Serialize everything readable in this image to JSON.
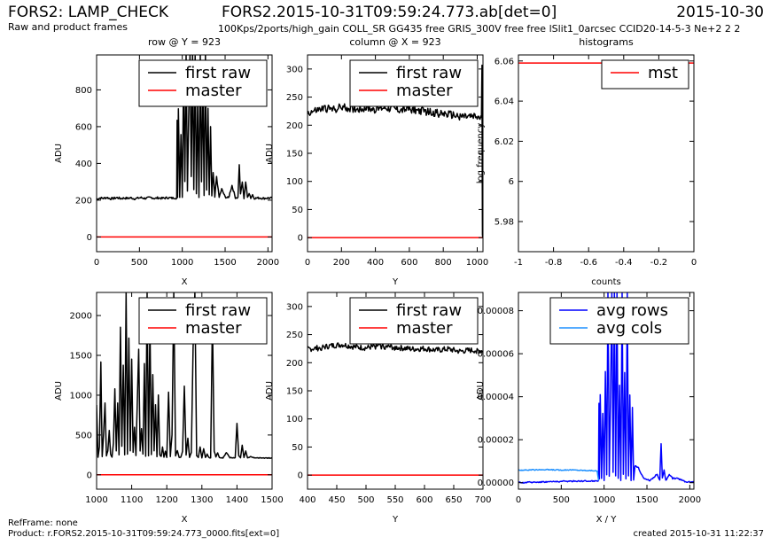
{
  "header": {
    "title": "FORS2: LAMP_CHECK",
    "subtitle": "Raw and product frames",
    "file": "FORS2.2015-10-31T09:59:24.773.ab[det=0]",
    "date": "2015-10-30",
    "config": "100Kps/2ports/high_gain COLL_SR GG435 free GRIS_300V free free lSlit1_0arcsec CCID20-14-5-3 Ne+2 2 2"
  },
  "footer": {
    "refframe": "RefFrame: none",
    "product": "Product: r.FORS2.2015-10-31T09:59:24.773_0000.fits[ext=0]",
    "created": "created 2015-10-31 11:22:37"
  },
  "colors": {
    "raw": "#000000",
    "master": "#ff0000",
    "rows": "#0000ff",
    "cols": "#1e90ff"
  },
  "chart_data": [
    {
      "id": "p1",
      "type": "line",
      "title": "row @ Y = 923",
      "xlabel": "X",
      "ylabel": "ADU",
      "xlim": [
        0,
        2048
      ],
      "ylim": [
        -80,
        990
      ],
      "xticks": [
        0,
        500,
        1000,
        1500,
        2000
      ],
      "yticks": [
        0,
        200,
        400,
        600,
        800
      ],
      "legend": "top-right",
      "series": [
        {
          "name": "first raw",
          "color": "#000000",
          "noise": 6,
          "x": [
            0,
            40,
            80,
            120,
            160,
            200,
            240,
            280,
            320,
            360,
            400,
            440,
            480,
            520,
            560,
            600,
            640,
            680,
            720,
            760,
            800,
            840,
            880,
            900,
            920,
            935,
            940,
            945,
            955,
            970,
            985,
            1000,
            1015,
            1030,
            1045,
            1060,
            1075,
            1090,
            1105,
            1120,
            1135,
            1150,
            1165,
            1180,
            1195,
            1210,
            1225,
            1240,
            1255,
            1270,
            1285,
            1300,
            1315,
            1330,
            1345,
            1360,
            1380,
            1400,
            1430,
            1460,
            1500,
            1540,
            1580,
            1620,
            1650,
            1665,
            1680,
            1700,
            1720,
            1740,
            1760,
            1780,
            1800,
            1820,
            1840,
            1860,
            1900,
            1950,
            2000,
            2048
          ],
          "y": [
            205,
            212,
            210,
            215,
            208,
            210,
            214,
            209,
            212,
            210,
            213,
            208,
            211,
            214,
            210,
            212,
            215,
            209,
            213,
            210,
            212,
            214,
            211,
            212,
            214,
            210,
            630,
            215,
            700,
            220,
            560,
            212,
            880,
            300,
            990,
            250,
            660,
            990,
            330,
            990,
            260,
            990,
            240,
            760,
            220,
            990,
            300,
            860,
            230,
            990,
            250,
            700,
            225,
            600,
            220,
            350,
            215,
            330,
            215,
            260,
            218,
            212,
            280,
            215,
            214,
            390,
            230,
            300,
            212,
            300,
            215,
            240,
            212,
            230,
            212,
            211,
            213,
            210,
            212,
            211
          ]
        },
        {
          "name": "master",
          "color": "#ff0000",
          "x": [
            0,
            2048
          ],
          "y": [
            0,
            0
          ]
        }
      ]
    },
    {
      "id": "p2",
      "type": "line",
      "title": "column @ X = 923",
      "xlabel": "Y",
      "ylabel": "ADU",
      "xlim": [
        0,
        1034
      ],
      "ylim": [
        -25,
        325
      ],
      "xticks": [
        0,
        200,
        400,
        600,
        800,
        1000
      ],
      "yticks": [
        0,
        50,
        100,
        150,
        200,
        250,
        300
      ],
      "legend": "top-right",
      "series": [
        {
          "name": "first raw",
          "color": "#000000",
          "noise": 7,
          "x": [
            0,
            50,
            100,
            150,
            200,
            250,
            300,
            350,
            400,
            450,
            500,
            550,
            600,
            650,
            700,
            750,
            800,
            850,
            900,
            950,
            1000,
            1025,
            1028,
            1031,
            1034
          ],
          "y": [
            222,
            226,
            230,
            228,
            232,
            230,
            229,
            231,
            228,
            232,
            230,
            227,
            229,
            226,
            224,
            222,
            220,
            218,
            216,
            215,
            214,
            212,
            310,
            0,
            0
          ]
        },
        {
          "name": "master",
          "color": "#ff0000",
          "x": [
            0,
            1034
          ],
          "y": [
            0,
            0
          ]
        }
      ]
    },
    {
      "id": "p3",
      "type": "line",
      "title": "histograms",
      "xlabel": "counts",
      "ylabel": "log frequency",
      "xlim": [
        -1.0,
        0.0
      ],
      "ylim": [
        5.965,
        6.063
      ],
      "xticks": [
        -1.0,
        -0.8,
        -0.6,
        -0.4,
        -0.2,
        0.0
      ],
      "yticks": [
        5.98,
        6.0,
        6.02,
        6.04,
        6.06
      ],
      "legend": "top-right",
      "series": [
        {
          "name": "mst",
          "color": "#ff0000",
          "x": [
            -1.0,
            0.0
          ],
          "y": [
            6.059,
            6.059
          ]
        }
      ]
    },
    {
      "id": "p4",
      "type": "line",
      "title": "",
      "xlabel": "X",
      "ylabel": "ADU",
      "xlim": [
        1000,
        1500
      ],
      "ylim": [
        -180,
        2290
      ],
      "xticks": [
        1000,
        1100,
        1200,
        1300,
        1400,
        1500
      ],
      "yticks": [
        0,
        500,
        1000,
        1500,
        2000
      ],
      "legend": "top-right",
      "series": [
        {
          "name": "first raw",
          "color": "#000000",
          "noise": 4,
          "x": [
            1000,
            1004,
            1008,
            1012,
            1016,
            1020,
            1024,
            1028,
            1032,
            1036,
            1040,
            1044,
            1048,
            1052,
            1056,
            1060,
            1064,
            1068,
            1072,
            1076,
            1080,
            1084,
            1088,
            1092,
            1096,
            1100,
            1104,
            1108,
            1112,
            1116,
            1120,
            1124,
            1128,
            1132,
            1136,
            1140,
            1144,
            1148,
            1152,
            1156,
            1160,
            1164,
            1168,
            1172,
            1176,
            1180,
            1184,
            1188,
            1192,
            1196,
            1200,
            1205,
            1210,
            1215,
            1220,
            1225,
            1230,
            1235,
            1240,
            1245,
            1250,
            1255,
            1260,
            1265,
            1270,
            1275,
            1280,
            1285,
            1290,
            1295,
            1300,
            1305,
            1310,
            1315,
            1320,
            1325,
            1330,
            1335,
            1340,
            1345,
            1350,
            1360,
            1370,
            1380,
            1390,
            1395,
            1400,
            1405,
            1410,
            1415,
            1420,
            1425,
            1430,
            1440,
            1450,
            1460,
            1470,
            1480,
            1490,
            1500
          ],
          "y": [
            880,
            220,
            350,
            1420,
            230,
            520,
            900,
            240,
            300,
            560,
            260,
            220,
            400,
            1080,
            300,
            900,
            250,
            1850,
            360,
            1380,
            250,
            2290,
            260,
            1720,
            300,
            1450,
            280,
            600,
            240,
            900,
            1580,
            300,
            580,
            260,
            1400,
            230,
            2290,
            240,
            1920,
            250,
            1260,
            300,
            880,
            230,
            1000,
            250,
            230,
            350,
            220,
            300,
            215,
            1040,
            230,
            500,
            2290,
            240,
            300,
            220,
            220,
            300,
            1110,
            250,
            460,
            220,
            280,
            1600,
            2290,
            240,
            220,
            350,
            215,
            330,
            215,
            260,
            218,
            212,
            1980,
            300,
            220,
            280,
            215,
            212,
            280,
            215,
            214,
            212,
            650,
            240,
            213,
            370,
            215,
            300,
            212,
            230,
            212,
            211,
            213,
            210,
            212,
            211
          ]
        },
        {
          "name": "master",
          "color": "#ff0000",
          "x": [
            1000,
            1500
          ],
          "y": [
            0,
            0
          ]
        }
      ]
    },
    {
      "id": "p5",
      "type": "line",
      "title": "",
      "xlabel": "Y",
      "ylabel": "ADU",
      "xlim": [
        400,
        700
      ],
      "ylim": [
        -25,
        325
      ],
      "xticks": [
        400,
        450,
        500,
        550,
        600,
        650,
        700
      ],
      "yticks": [
        0,
        50,
        100,
        150,
        200,
        250,
        300
      ],
      "legend": "top-right",
      "series": [
        {
          "name": "first raw",
          "color": "#000000",
          "noise": 5,
          "x": [
            400,
            420,
            440,
            460,
            480,
            500,
            520,
            540,
            560,
            580,
            600,
            620,
            640,
            660,
            680,
            700
          ],
          "y": [
            224,
            226,
            230,
            232,
            228,
            226,
            230,
            228,
            226,
            224,
            225,
            222,
            224,
            220,
            222,
            221
          ]
        },
        {
          "name": "master",
          "color": "#ff0000",
          "x": [
            400,
            700
          ],
          "y": [
            0,
            0
          ]
        }
      ]
    },
    {
      "id": "p6",
      "type": "line",
      "title": "",
      "xlabel": "X / Y",
      "ylabel": "ADU",
      "xlim": [
        0,
        2048
      ],
      "ylim": [
        -3e-06,
        8.85e-05
      ],
      "xticks": [
        0,
        500,
        1000,
        1500,
        2000
      ],
      "yticks": [
        0.0,
        2e-05,
        4e-05,
        6e-05,
        8e-05
      ],
      "ytick_labels": [
        "0.00000",
        "0.00002",
        "0.00004",
        "0.00006",
        "0.00008"
      ],
      "legend": "top-right",
      "series": [
        {
          "name": "avg rows",
          "color": "#0000ff",
          "noise": 3e-07,
          "x": [
            0,
            200,
            400,
            600,
            800,
            900,
            920,
            935,
            940,
            945,
            955,
            970,
            985,
            1000,
            1015,
            1030,
            1045,
            1060,
            1075,
            1090,
            1105,
            1120,
            1135,
            1150,
            1165,
            1180,
            1195,
            1210,
            1225,
            1240,
            1255,
            1270,
            1285,
            1300,
            1315,
            1330,
            1345,
            1360,
            1400,
            1460,
            1540,
            1620,
            1650,
            1665,
            1680,
            1700,
            1720,
            1760,
            1800,
            1860,
            1950,
            2048
          ],
          "y": [
            0.0,
            3e-07,
            5e-07,
            7e-07,
            8e-07,
            8e-07,
            9e-07,
            1e-06,
            3.7e-05,
            2e-06,
            4.1e-05,
            2e-06,
            3.2e-05,
            1e-06,
            5.2e-05,
            4e-06,
            8.85e-05,
            3e-06,
            3.9e-05,
            8.85e-05,
            5e-06,
            8.85e-05,
            3e-06,
            8.85e-05,
            2e-06,
            4.5e-05,
            1e-06,
            8.85e-05,
            4e-06,
            5.1e-05,
            2e-06,
            8.85e-05,
            3e-06,
            4.1e-05,
            1e-06,
            3.5e-05,
            1e-06,
            8e-06,
            7e-06,
            2e-06,
            1e-06,
            4e-06,
            1e-06,
            1.8e-05,
            2e-06,
            6e-06,
            1e-06,
            4e-06,
            2e-06,
            2e-06,
            5e-07,
            3e-07
          ]
        },
        {
          "name": "avg cols",
          "color": "#1e90ff",
          "noise": 2e-07,
          "x": [
            0,
            100,
            200,
            300,
            400,
            500,
            600,
            700,
            800,
            880,
            920,
            930,
            935
          ],
          "y": [
            5.8e-06,
            5.9e-06,
            6e-06,
            6.1e-06,
            6e-06,
            5.9e-06,
            6e-06,
            5.8e-06,
            5.7e-06,
            5.6e-06,
            5.4e-06,
            2.5e-06,
            1e-06
          ]
        }
      ]
    }
  ]
}
